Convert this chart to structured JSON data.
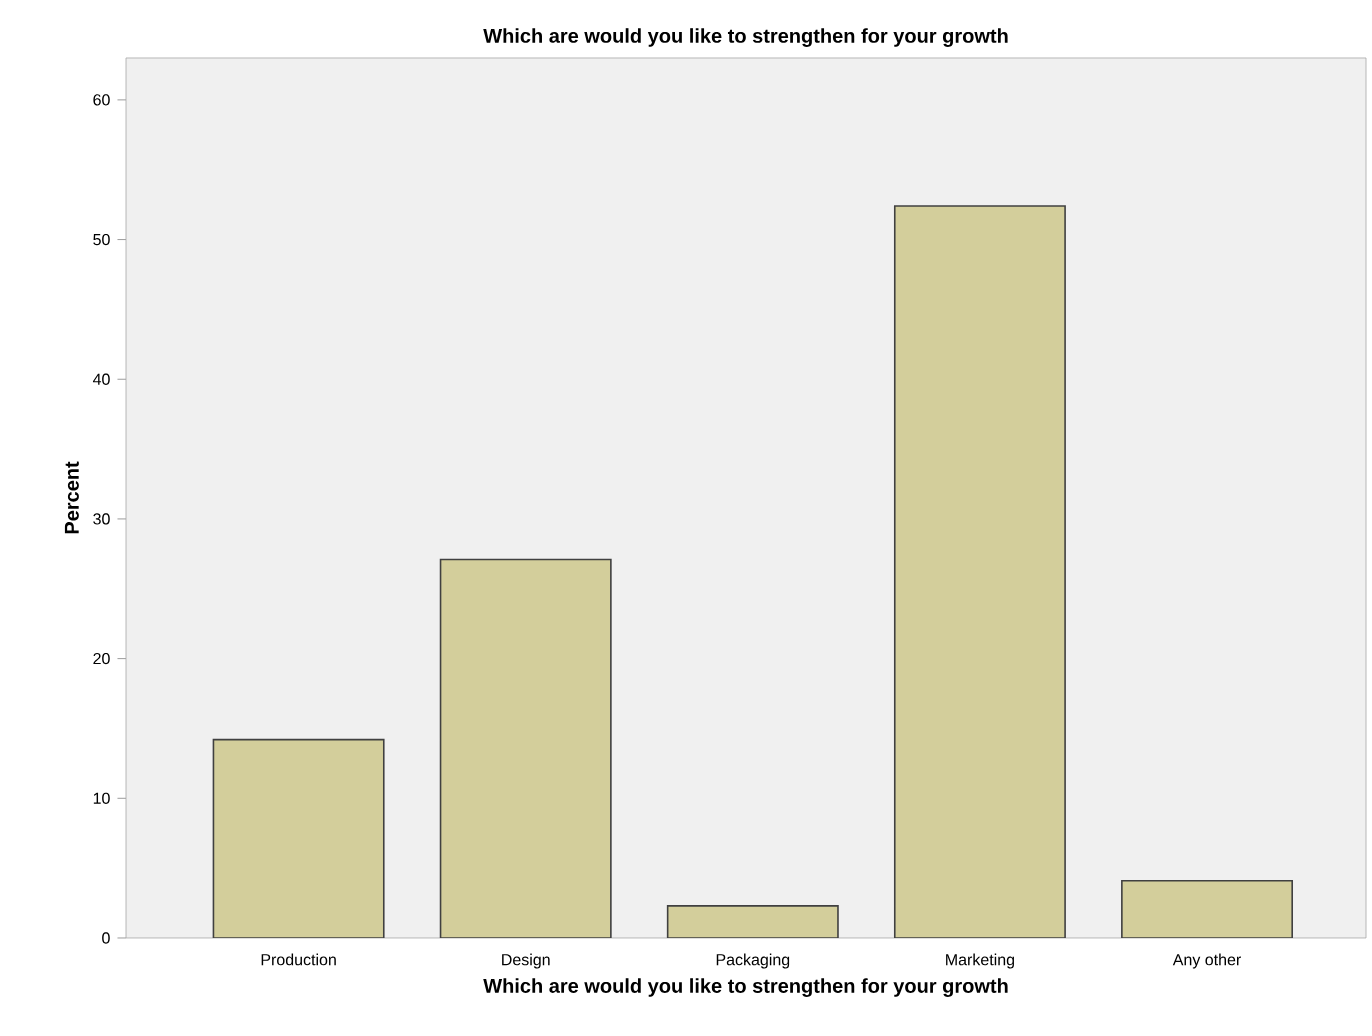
{
  "chart_data": {
    "type": "bar",
    "title": "Which are would you like to strengthen for your growth",
    "xlabel": "Which are would you like to strengthen for your growth",
    "ylabel": "Percent",
    "categories": [
      "Production",
      "Design",
      "Packaging",
      "Marketing",
      "Any other"
    ],
    "values": [
      14.2,
      27.1,
      2.3,
      52.4,
      4.1
    ],
    "color": "#d3ce9b",
    "ylim": [
      0,
      63
    ],
    "yticks": [
      0,
      10,
      20,
      30,
      40,
      50,
      60
    ],
    "grid": false
  }
}
